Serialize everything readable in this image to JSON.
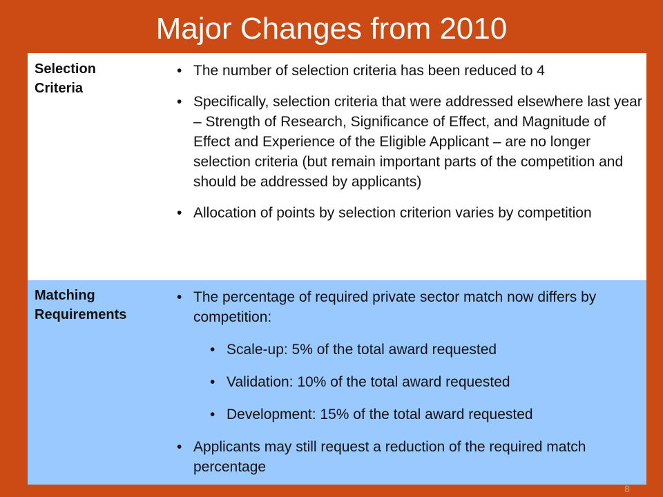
{
  "slide": {
    "title": "Major Changes from 2010",
    "page_number": "8"
  },
  "rows": {
    "selection": {
      "label_line1": "Selection",
      "label_line2": "Criteria",
      "bullets": [
        "The number of selection criteria has been reduced to 4",
        "Specifically, selection criteria that were addressed elsewhere last year – Strength of Research, Significance of Effect, and Magnitude of Effect and Experience of the Eligible Applicant – are no longer selection criteria (but remain important parts of the competition and should be addressed by applicants)",
        "Allocation of points by selection criterion varies by competition"
      ]
    },
    "matching": {
      "label_line1": "Matching",
      "label_line2": "Requirements",
      "bullets": [
        "The percentage of required private sector match now differs by competition:",
        "Scale-up: 5% of the total award requested",
        "Validation: 10% of the total award requested",
        "Development: 15% of the total award requested",
        "Applicants may still request a reduction of the required match percentage"
      ]
    }
  },
  "colors": {
    "accent_orange": "#cc4a13",
    "highlight_blue": "#99c9ff"
  }
}
